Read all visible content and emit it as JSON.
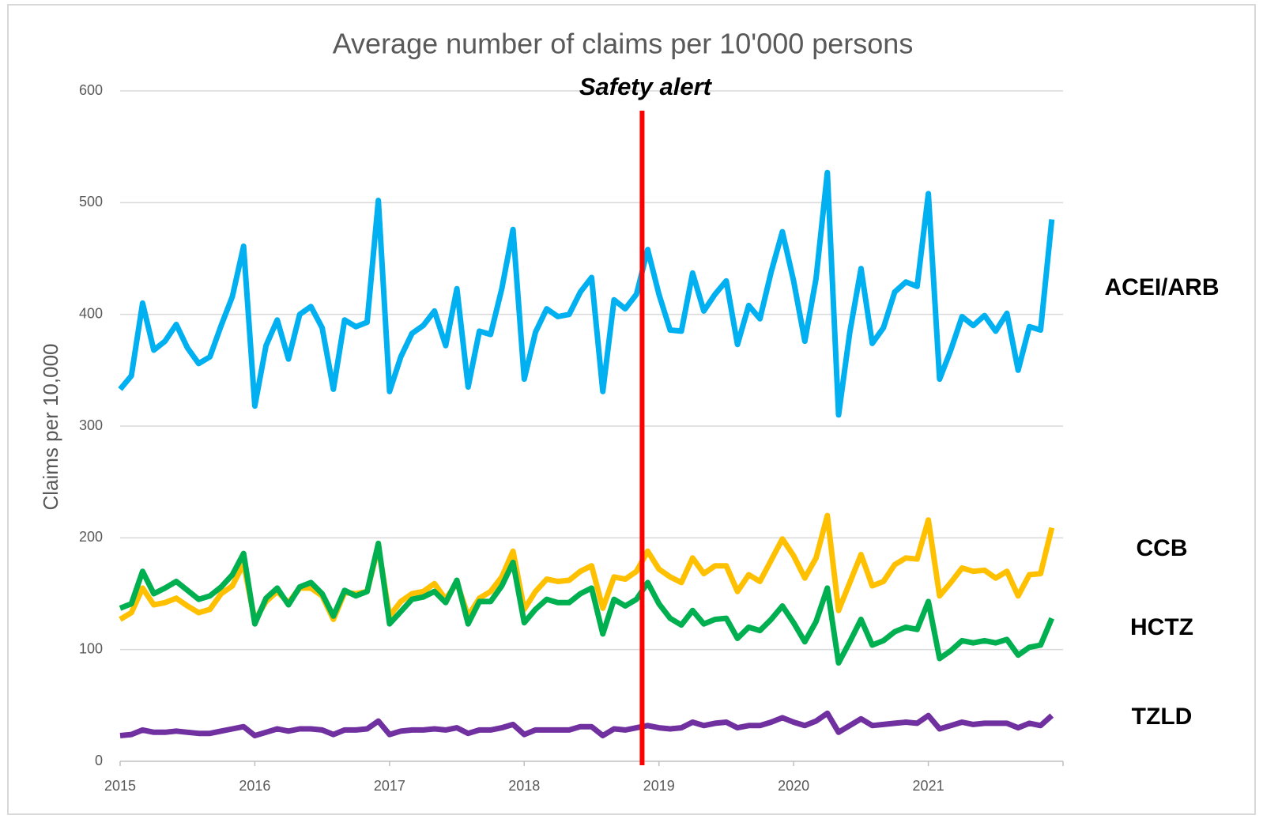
{
  "chart_data": {
    "type": "line",
    "title": "Average number of claims per 10'000 persons",
    "ylabel": "Claims per 10,000",
    "categories": [
      "2015",
      null,
      null,
      null,
      null,
      null,
      null,
      null,
      null,
      null,
      null,
      null,
      "2016",
      null,
      null,
      null,
      null,
      null,
      null,
      null,
      null,
      null,
      null,
      null,
      "2017",
      null,
      null,
      null,
      null,
      null,
      null,
      null,
      null,
      null,
      null,
      null,
      "2018",
      null,
      null,
      null,
      null,
      null,
      null,
      null,
      null,
      null,
      null,
      null,
      "2019",
      null,
      null,
      null,
      null,
      null,
      null,
      null,
      null,
      null,
      null,
      null,
      "2020",
      null,
      null,
      null,
      null,
      null,
      null,
      null,
      null,
      null,
      null,
      null,
      "2021",
      null,
      null,
      null,
      null,
      null,
      null,
      null,
      null,
      null,
      null,
      null
    ],
    "ylim": [
      0,
      600
    ],
    "yticks": [
      0,
      100,
      200,
      300,
      400,
      500,
      600
    ],
    "grid": true,
    "annotations": [
      {
        "text": "Safety alert",
        "x": 46.5,
        "color": "#ff0000"
      }
    ],
    "series": [
      {
        "name": "ACEI/ARB",
        "color": "#00b0f0",
        "values": [
          333,
          345,
          410,
          368,
          376,
          391,
          370,
          356,
          362,
          390,
          416,
          461,
          318,
          372,
          395,
          360,
          400,
          407,
          388,
          333,
          395,
          389,
          393,
          502,
          331,
          362,
          383,
          390,
          403,
          372,
          423,
          335,
          385,
          382,
          423,
          476,
          342,
          384,
          405,
          398,
          400,
          420,
          433,
          331,
          413,
          405,
          418,
          458,
          418,
          386,
          385,
          437,
          403,
          418,
          430,
          373,
          408,
          396,
          438,
          474,
          430,
          376,
          432,
          527,
          310,
          384,
          441,
          374,
          388,
          420,
          429,
          425,
          508,
          342,
          368,
          398,
          390,
          399,
          385,
          401,
          350,
          389,
          386,
          485
        ]
      },
      {
        "name": "CCB",
        "color": "#ffc000",
        "values": [
          127,
          133,
          155,
          140,
          142,
          146,
          139,
          133,
          136,
          150,
          157,
          177,
          126,
          143,
          152,
          142,
          155,
          155,
          148,
          127,
          151,
          150,
          152,
          192,
          130,
          143,
          150,
          152,
          159,
          145,
          160,
          130,
          146,
          152,
          165,
          188,
          136,
          152,
          163,
          161,
          162,
          170,
          175,
          137,
          165,
          163,
          170,
          188,
          172,
          165,
          160,
          182,
          168,
          175,
          175,
          152,
          167,
          161,
          180,
          199,
          184,
          164,
          182,
          220,
          135,
          160,
          185,
          157,
          161,
          176,
          182,
          181,
          216,
          148,
          160,
          173,
          170,
          171,
          164,
          170,
          148,
          167,
          168,
          209
        ]
      },
      {
        "name": "HCTZ",
        "color": "#00b050",
        "values": [
          137,
          141,
          170,
          150,
          155,
          161,
          153,
          145,
          148,
          156,
          167,
          186,
          123,
          146,
          155,
          140,
          156,
          160,
          150,
          130,
          153,
          148,
          152,
          195,
          123,
          134,
          145,
          147,
          152,
          142,
          162,
          123,
          143,
          143,
          157,
          178,
          124,
          136,
          145,
          142,
          142,
          150,
          155,
          114,
          145,
          139,
          145,
          160,
          141,
          128,
          122,
          135,
          123,
          127,
          128,
          110,
          120,
          117,
          127,
          139,
          124,
          107,
          125,
          155,
          88,
          107,
          127,
          104,
          108,
          116,
          120,
          118,
          143,
          92,
          99,
          108,
          106,
          108,
          106,
          109,
          95,
          102,
          104,
          128
        ]
      },
      {
        "name": "TZLD",
        "color": "#7030a0",
        "values": [
          23,
          24,
          28,
          26,
          26,
          27,
          26,
          25,
          25,
          27,
          29,
          31,
          23,
          26,
          29,
          27,
          29,
          29,
          28,
          24,
          28,
          28,
          29,
          36,
          24,
          27,
          28,
          28,
          29,
          28,
          30,
          25,
          28,
          28,
          30,
          33,
          24,
          28,
          28,
          28,
          28,
          31,
          31,
          23,
          29,
          28,
          30,
          32,
          30,
          29,
          30,
          35,
          32,
          34,
          35,
          30,
          32,
          32,
          35,
          39,
          35,
          32,
          36,
          43,
          26,
          32,
          38,
          32,
          33,
          34,
          35,
          34,
          41,
          29,
          32,
          35,
          33,
          34,
          34,
          34,
          30,
          34,
          32,
          41
        ]
      }
    ]
  }
}
